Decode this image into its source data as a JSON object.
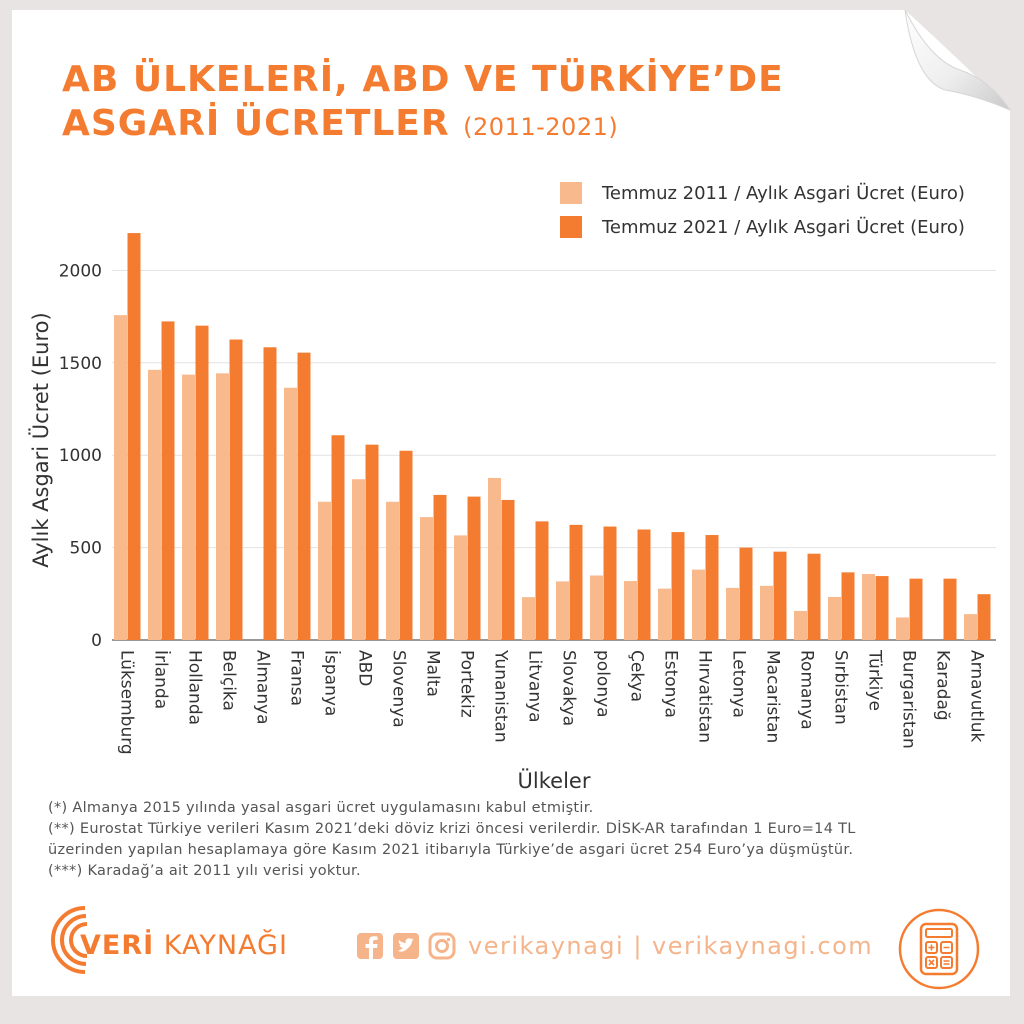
{
  "title": {
    "line1": "AB ÜLKELERİ, ABD VE TÜRKİYE’DE",
    "line2": "ASGARİ ÜCRETLER",
    "years": "(2011-2021)"
  },
  "colors": {
    "orange": "#f47c30",
    "light_orange": "#f8b98c",
    "background": "#ffffff"
  },
  "chart_data": {
    "type": "bar",
    "xlabel": "Ülkeler",
    "ylabel": "Aylık Asgari Ücret (Euro)",
    "ylim": [
      0,
      2250
    ],
    "yticks": [
      0,
      500,
      1000,
      1500,
      2000
    ],
    "grid": true,
    "legend_position": "top-right",
    "categories": [
      "Lüksemburg",
      "İrlanda",
      "Hollanda",
      "Belçika",
      "Almanya",
      "Fransa",
      "İspanya",
      "ABD",
      "Slovenya",
      "Malta",
      "Portekiz",
      "Yunanistan",
      "Litvanya",
      "Slovakya",
      "polonya",
      "Çekya",
      "Estonya",
      "Hırvatistan",
      "Letonya",
      "Macaristan",
      "Romanya",
      "Sırbistan",
      "Türkiye",
      "Burgaristan",
      "Karadağ",
      "Arnavutluk"
    ],
    "series": [
      {
        "name": "Temmuz 2011 / Aylık Asgari Ücret (Euro)",
        "color": "#f8b98c",
        "values": [
          1758,
          1462,
          1436,
          1443,
          null,
          1365,
          748,
          870,
          748,
          665,
          566,
          877,
          232,
          317,
          349,
          319,
          278,
          381,
          282,
          293,
          157,
          233,
          357,
          122,
          null,
          140
        ]
      },
      {
        "name": "Temmuz 2021 / Aylık Asgari Ücret (Euro)",
        "color": "#f47c30",
        "values": [
          2202,
          1724,
          1701,
          1626,
          1584,
          1555,
          1108,
          1057,
          1024,
          785,
          776,
          758,
          642,
          623,
          614,
          598,
          584,
          568,
          500,
          478,
          467,
          366,
          346,
          332,
          332,
          248
        ]
      }
    ]
  },
  "notes": [
    "(*) Almanya 2015 yılında yasal asgari ücret uygulamasını kabul etmiştir.",
    "(**) Eurostat Türkiye verileri Kasım 2021’deki döviz krizi öncesi verilerdir. DİSK-AR tarafından 1 Euro=14 TL",
    "üzerinden yapılan hesaplamaya göre Kasım 2021 itibarıyla Türkiye’de asgari ücret 254 Euro’ya düşmüştür.",
    "(***) Karadağ’a ait 2011 yılı verisi yoktur."
  ],
  "footer": {
    "logo_bold": "VERİ",
    "logo_rest": " KAYNAĞI",
    "social_text": "verikaynagi | verikaynagi.com",
    "icons": [
      "facebook-icon",
      "twitter-icon",
      "instagram-icon",
      "calculator-icon"
    ]
  }
}
